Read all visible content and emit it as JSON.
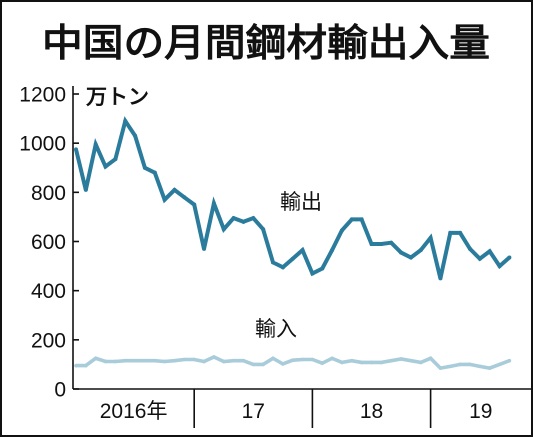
{
  "chart_data": {
    "type": "line",
    "title": "中国の月間鋼材輸出入量",
    "ylabel": "万トン",
    "ylim": [
      0,
      1200
    ],
    "yticks": [
      0,
      200,
      400,
      600,
      800,
      1000,
      1200
    ],
    "xtick_labels": [
      "2016年",
      "17",
      "18",
      "19"
    ],
    "x": [
      "2016-01",
      "2016-02",
      "2016-03",
      "2016-04",
      "2016-05",
      "2016-06",
      "2016-07",
      "2016-08",
      "2016-09",
      "2016-10",
      "2016-11",
      "2016-12",
      "2017-01",
      "2017-02",
      "2017-03",
      "2017-04",
      "2017-05",
      "2017-06",
      "2017-07",
      "2017-08",
      "2017-09",
      "2017-10",
      "2017-11",
      "2017-12",
      "2018-01",
      "2018-02",
      "2018-03",
      "2018-04",
      "2018-05",
      "2018-06",
      "2018-07",
      "2018-08",
      "2018-09",
      "2018-10",
      "2018-11",
      "2018-12",
      "2019-01",
      "2019-02",
      "2019-03",
      "2019-04",
      "2019-05",
      "2019-06",
      "2019-07",
      "2019-08",
      "2019-09"
    ],
    "series": [
      {
        "name": "輸出",
        "color": "#2b7c9c",
        "values": [
          975,
          810,
          995,
          905,
          935,
          1090,
          1030,
          900,
          880,
          770,
          810,
          780,
          750,
          570,
          755,
          650,
          695,
          680,
          695,
          650,
          515,
          495,
          530,
          565,
          470,
          490,
          565,
          645,
          690,
          690,
          590,
          590,
          595,
          555,
          535,
          565,
          615,
          450,
          635,
          635,
          570,
          530,
          560,
          500,
          535
        ]
      },
      {
        "name": "輸入",
        "color": "#a9ccda",
        "values": [
          95,
          95,
          125,
          112,
          112,
          115,
          115,
          115,
          115,
          112,
          115,
          120,
          120,
          112,
          130,
          112,
          115,
          115,
          100,
          100,
          125,
          102,
          117,
          120,
          120,
          105,
          125,
          108,
          115,
          108,
          108,
          108,
          115,
          122,
          115,
          108,
          125,
          85,
          92,
          100,
          100,
          92,
          85,
          100,
          115
        ]
      }
    ],
    "grid": false,
    "legend": "inline"
  }
}
